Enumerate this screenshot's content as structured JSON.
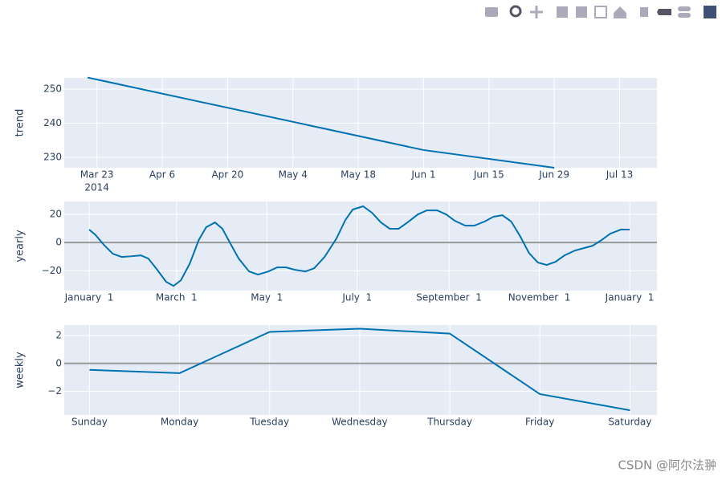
{
  "chart_data": [
    {
      "type": "line",
      "ylabel": "trend",
      "color": "#0072B2",
      "x": [
        "2014-03-21",
        "2014-06-01",
        "2014-06-29"
      ],
      "values": [
        253.4,
        232.1,
        226.9
      ],
      "xlim": [
        "2014-03-16",
        "2014-07-21"
      ],
      "xticks": [
        {
          "value": "2014-03-23",
          "label": "Mar 23"
        },
        {
          "value": "2014-04-06",
          "label": "Apr 6"
        },
        {
          "value": "2014-04-20",
          "label": "Apr 20"
        },
        {
          "value": "2014-05-04",
          "label": "May 4"
        },
        {
          "value": "2014-05-18",
          "label": "May 18"
        },
        {
          "value": "2014-06-01",
          "label": "Jun 1"
        },
        {
          "value": "2014-06-15",
          "label": "Jun 15"
        },
        {
          "value": "2014-06-29",
          "label": "Jun 29"
        },
        {
          "value": "2014-07-13",
          "label": "Jul 13"
        }
      ],
      "xtick_year": "2014",
      "ylim": [
        226.9,
        253.3
      ],
      "yticks": [
        230,
        240,
        250
      ],
      "grid": true
    },
    {
      "type": "line",
      "ylabel": "yearly",
      "color": "#0072B2",
      "zeroline": true,
      "x": [
        0,
        4,
        10,
        16,
        22,
        29,
        35,
        40,
        46,
        52,
        57,
        62,
        68,
        74,
        79,
        85,
        90,
        95,
        101,
        108,
        114,
        121,
        127,
        133,
        139,
        146,
        152,
        159,
        167,
        173,
        178,
        185,
        191,
        197,
        203,
        209,
        215,
        222,
        228,
        235,
        241,
        247,
        254,
        260,
        267,
        273,
        279,
        285,
        291,
        297,
        303,
        309,
        315,
        321,
        328,
        334,
        340,
        346,
        352,
        359,
        365
      ],
      "values": [
        9.1,
        5.7,
        -1.7,
        -8,
        -10.2,
        -9.7,
        -9.1,
        -11.4,
        -19.3,
        -27.8,
        -30.7,
        -26.7,
        -14.8,
        1.7,
        10.8,
        14.2,
        9.7,
        0,
        -11.4,
        -20.5,
        -22.7,
        -20.5,
        -17.6,
        -17.6,
        -19.3,
        -20.5,
        -18.2,
        -10.2,
        2.8,
        15.9,
        23.3,
        25.6,
        21,
        14.2,
        9.7,
        9.7,
        14.2,
        19.9,
        22.7,
        22.7,
        19.9,
        15.3,
        11.9,
        11.9,
        14.8,
        18.2,
        19.3,
        14.8,
        4.5,
        -7.4,
        -14.2,
        -15.9,
        -13.6,
        -9.1,
        -5.7,
        -4,
        -2.3,
        1.7,
        6.3,
        9.1,
        9.1
      ],
      "xlim": [
        -16.8,
        383.4
      ],
      "xticks": [
        {
          "value": 0,
          "label": "January  1"
        },
        {
          "value": 59,
          "label": "March  1"
        },
        {
          "value": 120,
          "label": "May  1"
        },
        {
          "value": 181,
          "label": "July  1"
        },
        {
          "value": 243,
          "label": "September  1"
        },
        {
          "value": 304,
          "label": "November  1"
        },
        {
          "value": 365,
          "label": "January  1"
        }
      ],
      "ylim": [
        -34,
        29
      ],
      "yticks": [
        {
          "value": -20,
          "label": "−20"
        },
        0,
        20
      ],
      "grid": true
    },
    {
      "type": "line",
      "ylabel": "weekly",
      "color": "#0072B2",
      "zeroline": true,
      "categories": [
        "Sunday",
        "Monday",
        "Tuesday",
        "Wednesday",
        "Thursday",
        "Friday",
        "Saturday"
      ],
      "values": [
        -0.46,
        -0.7,
        2.26,
        2.49,
        2.14,
        -2.2,
        -3.36
      ],
      "ylim": [
        -3.7,
        2.75
      ],
      "yticks": [
        {
          "value": -2,
          "label": "−2"
        },
        0,
        2
      ],
      "grid": true
    }
  ],
  "watermark": "CSDN @阿尔法翀"
}
